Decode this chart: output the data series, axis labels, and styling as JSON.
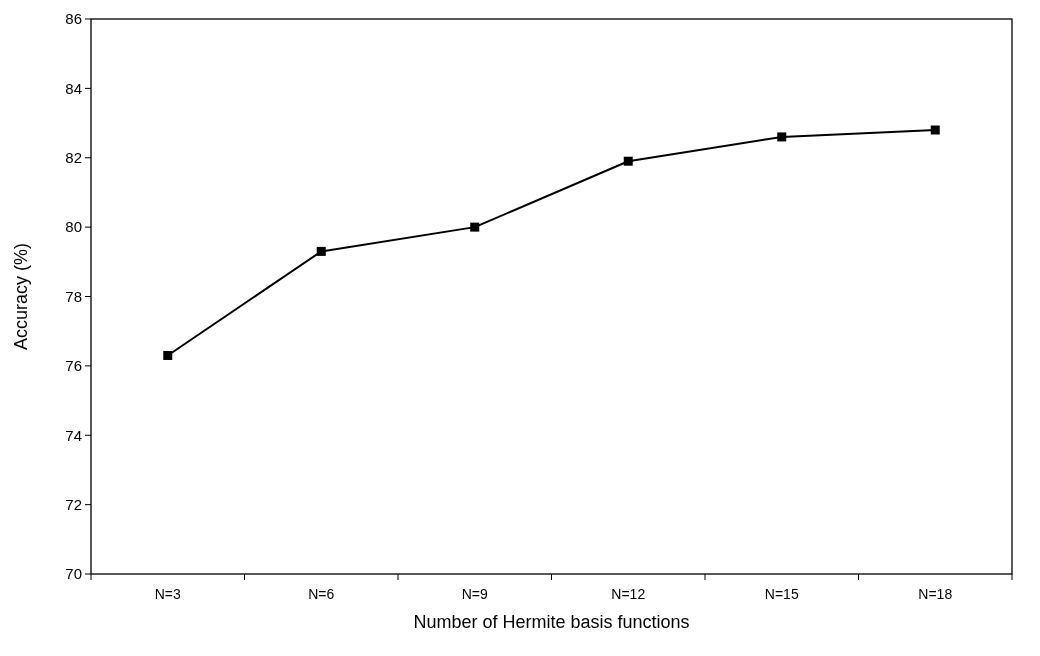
{
  "chart_data": {
    "type": "line",
    "xlabel": "Number of Hermite basis functions",
    "ylabel": "Accuracy (%)",
    "categories": [
      "N=3",
      "N=6",
      "N=9",
      "N=12",
      "N=15",
      "N=18"
    ],
    "series": [
      {
        "color": "#000000",
        "values": [
          76.3,
          79.3,
          80.0,
          81.9,
          82.6,
          82.8
        ]
      }
    ],
    "ylim": [
      70,
      86
    ],
    "yticks": [
      70,
      72,
      74,
      76,
      78,
      80,
      82,
      84,
      86
    ],
    "grid": false,
    "marker": "square",
    "line_style": "solid"
  }
}
